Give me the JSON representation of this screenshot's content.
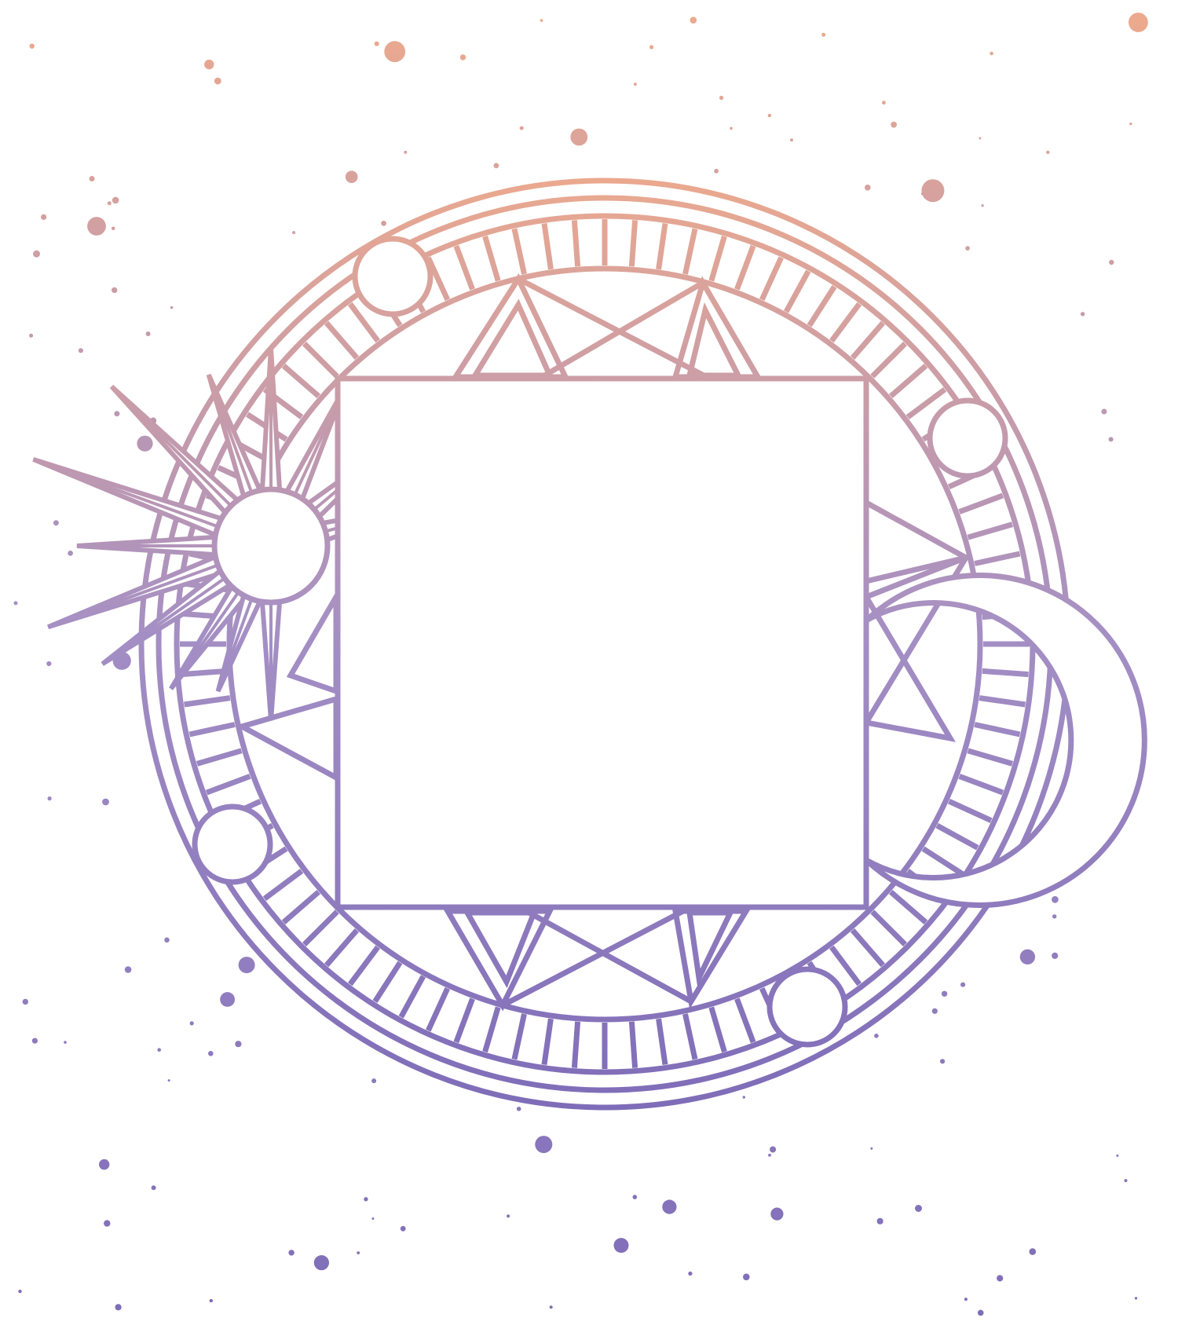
{
  "artwork": {
    "subject": "mystic-circle-frame",
    "colors": {
      "background": "#ffffff",
      "gradient_top": "#eeaa8c",
      "gradient_mid": "#a48fc4",
      "gradient_bottom": "#7e6cb8"
    },
    "motifs": [
      "sun-icon",
      "crescent-moon-icon",
      "planet-circle-icon",
      "star-dust-icon",
      "ladder-ring-icon",
      "triangle-pattern-icon"
    ],
    "planet_count": 5,
    "frame": {
      "shape": "square",
      "filled": "empty"
    }
  }
}
